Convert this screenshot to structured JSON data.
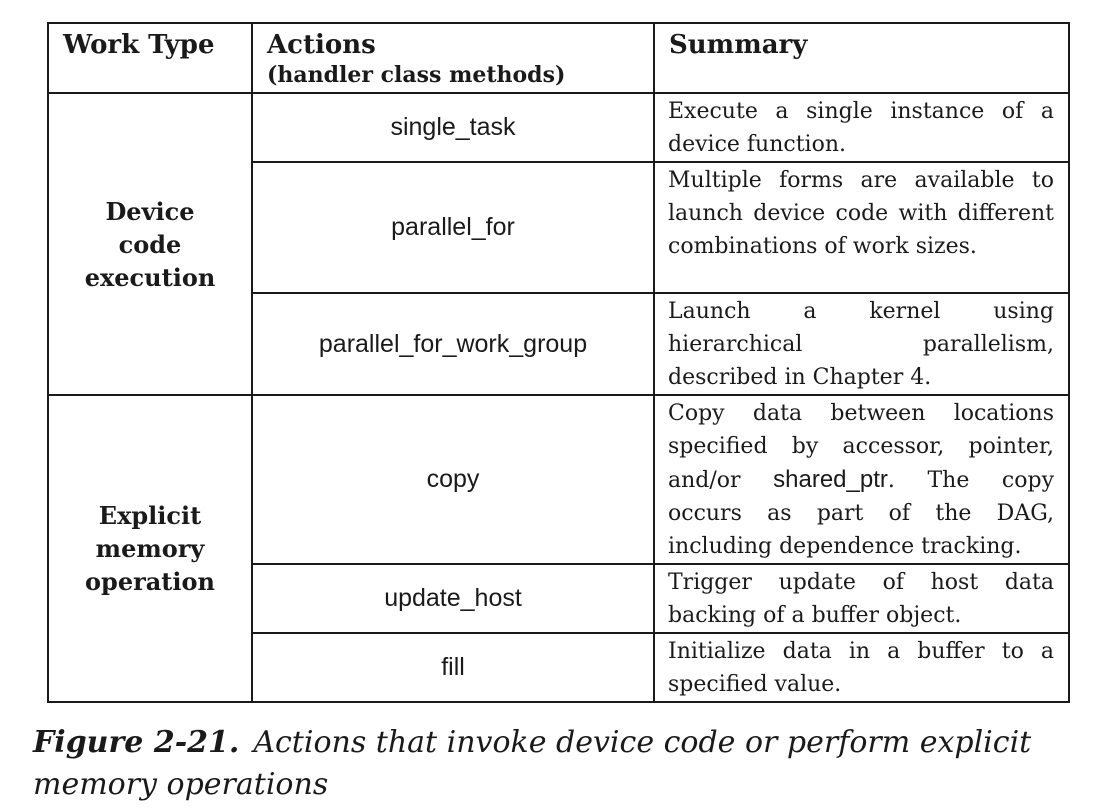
{
  "table": {
    "headers": {
      "work_type": "Work Type",
      "actions": "Actions",
      "actions_sub": "(handler class methods)",
      "summary": "Summary"
    },
    "groups": [
      {
        "work_type": "Device code execution",
        "rows": [
          {
            "action": "single_task",
            "summary": "Execute a single instance of a device function."
          },
          {
            "action": "parallel_for",
            "summary": "Multiple forms are available to launch device code with different combinations of work sizes."
          },
          {
            "action": "parallel_for_work_group",
            "summary": "Launch a kernel using hierarchical parallelism, described in Chapter 4."
          }
        ]
      },
      {
        "work_type": "Explicit memory operation",
        "rows": [
          {
            "action": "copy",
            "summary_pre": "Copy data between locations specified by accessor, pointer, and/or ",
            "summary_code": "shared_ptr",
            "summary_post": ".  The copy occurs as part of the DAG, including dependence tracking."
          },
          {
            "action": "update_host",
            "summary": "Trigger update of host data backing of a buffer object."
          },
          {
            "action": "fill",
            "summary": "Initialize data in a buffer to a specified value."
          }
        ]
      }
    ]
  },
  "caption": {
    "figure_label": "Figure 2-21.",
    "text": "Actions that invoke device code or perform explicit memory operations"
  }
}
